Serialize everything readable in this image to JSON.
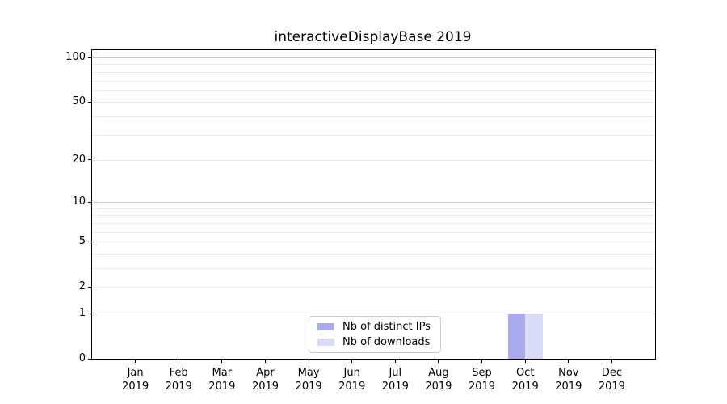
{
  "chart_data": {
    "type": "bar",
    "title": "interactiveDisplayBase 2019",
    "year_label": "2019",
    "months": [
      "Jan",
      "Feb",
      "Mar",
      "Apr",
      "May",
      "Jun",
      "Jul",
      "Aug",
      "Sep",
      "Oct",
      "Nov",
      "Dec"
    ],
    "categories": [
      "Jan 2019",
      "Feb 2019",
      "Mar 2019",
      "Apr 2019",
      "May 2019",
      "Jun 2019",
      "Jul 2019",
      "Aug 2019",
      "Sep 2019",
      "Oct 2019",
      "Nov 2019",
      "Dec 2019"
    ],
    "series": [
      {
        "name": "Nb of distinct IPs",
        "color": "#aaaaee",
        "values": [
          0,
          0,
          0,
          0,
          0,
          0,
          0,
          0,
          0,
          1,
          0,
          0
        ]
      },
      {
        "name": "Nb of downloads",
        "color": "#d9dcf7",
        "values": [
          0,
          0,
          0,
          0,
          0,
          0,
          0,
          0,
          0,
          1,
          0,
          0
        ]
      }
    ],
    "yscale": "log1p",
    "ylim": [
      0,
      100
    ],
    "yticks_labeled": [
      0,
      1,
      2,
      5,
      10,
      20,
      50,
      100
    ],
    "yticks_decade_grid": [
      1,
      10,
      100
    ],
    "yticks_light_grid": [
      2,
      5,
      20,
      50
    ],
    "yticks_minor_grid": [
      3,
      4,
      6,
      7,
      8,
      9,
      30,
      40,
      60,
      70,
      80,
      90
    ],
    "grid": true,
    "legend_position": "bottom-center"
  },
  "style": {
    "grid_major_color": "#cccccc",
    "grid_minor_color": "#ececec",
    "axis_color": "#000000"
  }
}
